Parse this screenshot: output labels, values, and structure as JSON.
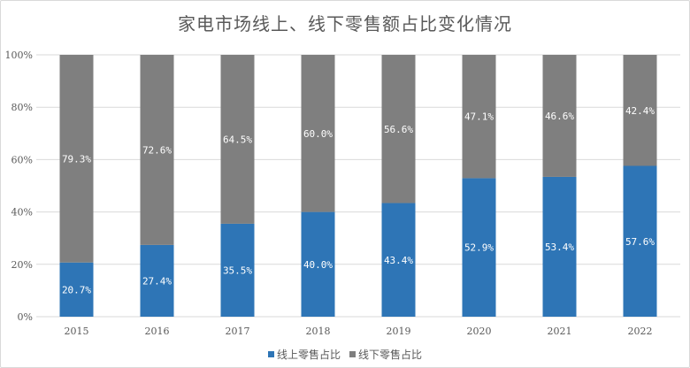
{
  "chart_data": {
    "type": "bar",
    "stacked": true,
    "title": "家电市场线上、线下零售额占比变化情况",
    "categories": [
      "2015",
      "2016",
      "2017",
      "2018",
      "2019",
      "2020",
      "2021",
      "2022"
    ],
    "series": [
      {
        "name": "线上零售占比",
        "color": "#2e75b6",
        "values": [
          20.7,
          27.4,
          35.5,
          40.0,
          43.4,
          52.9,
          53.4,
          57.6
        ],
        "labels": [
          "20.7%",
          "27.4%",
          "35.5%",
          "40.0%",
          "43.4%",
          "52.9%",
          "53.4%",
          "57.6%"
        ]
      },
      {
        "name": "线下零售占比",
        "color": "#7f7f7f",
        "values": [
          79.3,
          72.6,
          64.5,
          60.0,
          56.6,
          47.1,
          46.6,
          42.4
        ],
        "labels": [
          "79.3%",
          "72.6%",
          "64.5%",
          "60.0%",
          "56.6%",
          "47.1%",
          "46.6%",
          "42.4%"
        ]
      }
    ],
    "y_ticks": [
      "0%",
      "20%",
      "40%",
      "60%",
      "80%",
      "100%"
    ],
    "ylim": [
      0,
      100
    ],
    "grid": true,
    "legend_position": "bottom"
  }
}
